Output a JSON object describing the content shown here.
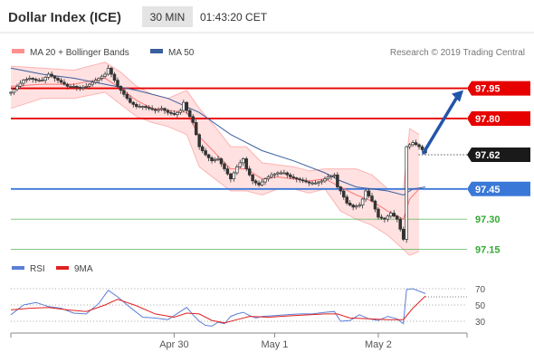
{
  "header": {
    "title": "Dollar Index (ICE)",
    "timeframe": "30 MIN",
    "time": "01:43:20 CET"
  },
  "legend": {
    "bollinger_label": "MA 20 + Bollinger Bands",
    "ma50_label": "MA 50",
    "credit": "Research © 2019 Trading Central"
  },
  "colors": {
    "resistance": "#e60000",
    "support": "#3a78d8",
    "current": "#222222",
    "target_line": "#2255aa",
    "bollinger": "#ff7777",
    "ma50": "#3a5fa0",
    "rsi": "#5b7fd6",
    "rsi_ma": "#e02020",
    "candle": "#333333"
  },
  "chart_data": [
    {
      "type": "candlestick",
      "title": "Dollar Index (ICE)",
      "interval": "30 MIN",
      "ylim": [
        97.13,
        98.02
      ],
      "x_ticks": [
        "Apr 30",
        "May 1",
        "May 2"
      ],
      "y_levels": [
        {
          "label": "97.95",
          "value": 97.95,
          "kind": "resistance",
          "style": "thick"
        },
        {
          "label": "97.80",
          "value": 97.8,
          "kind": "resistance",
          "style": "thick"
        },
        {
          "label": "97.62",
          "value": 97.62,
          "kind": "current",
          "style": "dotted"
        },
        {
          "label": "97.45",
          "value": 97.45,
          "kind": "pivot",
          "style": "thick"
        },
        {
          "label": "97.30",
          "value": 97.3,
          "kind": "support",
          "style": "thin"
        },
        {
          "label": "97.15",
          "value": 97.15,
          "kind": "support",
          "style": "thin"
        }
      ],
      "target_arrow": {
        "from": 97.63,
        "to": 97.95
      },
      "close_path": [
        [
          0,
          97.93
        ],
        [
          2,
          97.96
        ],
        [
          4,
          97.99
        ],
        [
          6,
          98.0
        ],
        [
          8,
          97.99
        ],
        [
          10,
          97.99
        ],
        [
          12,
          98.02
        ],
        [
          14,
          98.0
        ],
        [
          16,
          97.98
        ],
        [
          18,
          97.96
        ],
        [
          20,
          97.96
        ],
        [
          22,
          97.95
        ],
        [
          24,
          97.96
        ],
        [
          26,
          97.98
        ],
        [
          28,
          98.0
        ],
        [
          30,
          98.02
        ],
        [
          31,
          98.05
        ],
        [
          32,
          98.02
        ],
        [
          34,
          97.96
        ],
        [
          36,
          97.92
        ],
        [
          38,
          97.88
        ],
        [
          40,
          97.86
        ],
        [
          42,
          97.86
        ],
        [
          44,
          97.85
        ],
        [
          46,
          97.84
        ],
        [
          48,
          97.85
        ],
        [
          50,
          97.83
        ],
        [
          52,
          97.82
        ],
        [
          54,
          97.84
        ],
        [
          55,
          97.88
        ],
        [
          56,
          97.84
        ],
        [
          58,
          97.78
        ],
        [
          59,
          97.72
        ],
        [
          60,
          97.66
        ],
        [
          62,
          97.62
        ],
        [
          64,
          97.59
        ],
        [
          66,
          97.6
        ],
        [
          68,
          97.55
        ],
        [
          70,
          97.5
        ],
        [
          72,
          97.56
        ],
        [
          74,
          97.6
        ],
        [
          75,
          97.55
        ],
        [
          77,
          97.49
        ],
        [
          79,
          97.47
        ],
        [
          81,
          97.5
        ],
        [
          83,
          97.52
        ],
        [
          85,
          97.53
        ],
        [
          87,
          97.53
        ],
        [
          89,
          97.51
        ],
        [
          91,
          97.5
        ],
        [
          93,
          97.49
        ],
        [
          95,
          97.48
        ],
        [
          97,
          97.48
        ],
        [
          99,
          97.49
        ],
        [
          101,
          97.51
        ],
        [
          103,
          97.52
        ],
        [
          104,
          97.46
        ],
        [
          105,
          97.44
        ],
        [
          107,
          97.38
        ],
        [
          109,
          97.36
        ],
        [
          111,
          97.37
        ],
        [
          112,
          97.4
        ],
        [
          113,
          97.44
        ],
        [
          115,
          97.39
        ],
        [
          117,
          97.31
        ],
        [
          119,
          97.3
        ],
        [
          121,
          97.33
        ],
        [
          123,
          97.3
        ],
        [
          125,
          97.2
        ],
        [
          126,
          97.66
        ],
        [
          128,
          97.68
        ],
        [
          130,
          97.66
        ],
        [
          132,
          97.63
        ]
      ],
      "bollinger": {
        "upper": [
          [
            0,
            98.06
          ],
          [
            10,
            98.05
          ],
          [
            20,
            98.04
          ],
          [
            30,
            98.08
          ],
          [
            35,
            98.03
          ],
          [
            40,
            97.96
          ],
          [
            45,
            97.92
          ],
          [
            50,
            97.9
          ],
          [
            56,
            97.94
          ],
          [
            60,
            97.85
          ],
          [
            65,
            97.76
          ],
          [
            70,
            97.66
          ],
          [
            75,
            97.66
          ],
          [
            80,
            97.58
          ],
          [
            85,
            97.57
          ],
          [
            90,
            97.56
          ],
          [
            95,
            97.54
          ],
          [
            100,
            97.55
          ],
          [
            105,
            97.55
          ],
          [
            110,
            97.55
          ],
          [
            115,
            97.52
          ],
          [
            120,
            97.45
          ],
          [
            125,
            97.45
          ],
          [
            127,
            97.75
          ],
          [
            130,
            97.72
          ]
        ],
        "lower": [
          [
            0,
            97.85
          ],
          [
            10,
            97.9
          ],
          [
            20,
            97.9
          ],
          [
            30,
            97.93
          ],
          [
            35,
            97.87
          ],
          [
            40,
            97.81
          ],
          [
            45,
            97.78
          ],
          [
            50,
            97.76
          ],
          [
            56,
            97.72
          ],
          [
            60,
            97.56
          ],
          [
            65,
            97.5
          ],
          [
            70,
            97.44
          ],
          [
            75,
            97.44
          ],
          [
            80,
            97.42
          ],
          [
            85,
            97.45
          ],
          [
            90,
            97.45
          ],
          [
            95,
            97.43
          ],
          [
            100,
            97.45
          ],
          [
            105,
            97.34
          ],
          [
            110,
            97.3
          ],
          [
            115,
            97.27
          ],
          [
            120,
            97.22
          ],
          [
            125,
            97.15
          ],
          [
            127,
            97.12
          ],
          [
            130,
            97.14
          ]
        ]
      },
      "ma20": [
        [
          0,
          97.96
        ],
        [
          10,
          97.97
        ],
        [
          20,
          97.97
        ],
        [
          30,
          98.0
        ],
        [
          35,
          97.95
        ],
        [
          40,
          97.89
        ],
        [
          45,
          97.85
        ],
        [
          50,
          97.84
        ],
        [
          56,
          97.83
        ],
        [
          60,
          97.71
        ],
        [
          65,
          97.63
        ],
        [
          70,
          97.55
        ],
        [
          75,
          97.55
        ],
        [
          80,
          97.5
        ],
        [
          85,
          97.51
        ],
        [
          90,
          97.5
        ],
        [
          95,
          97.49
        ],
        [
          100,
          97.5
        ],
        [
          105,
          97.46
        ],
        [
          110,
          97.42
        ],
        [
          115,
          97.39
        ],
        [
          120,
          97.34
        ],
        [
          125,
          97.3
        ],
        [
          127,
          97.4
        ],
        [
          130,
          97.45
        ]
      ],
      "ma50": [
        [
          0,
          98.05
        ],
        [
          10,
          98.02
        ],
        [
          20,
          98.0
        ],
        [
          30,
          97.97
        ],
        [
          40,
          97.94
        ],
        [
          50,
          97.9
        ],
        [
          60,
          97.83
        ],
        [
          70,
          97.72
        ],
        [
          80,
          97.64
        ],
        [
          90,
          97.59
        ],
        [
          100,
          97.53
        ],
        [
          105,
          97.49
        ],
        [
          110,
          97.46
        ],
        [
          115,
          97.45
        ],
        [
          120,
          97.44
        ],
        [
          125,
          97.42
        ],
        [
          128,
          97.45
        ],
        [
          132,
          97.46
        ]
      ]
    },
    {
      "type": "line",
      "title": "",
      "ylim": [
        20,
        80
      ],
      "y_ticks": [
        70,
        50,
        30
      ],
      "series": [
        {
          "name": "RSI",
          "values": [
            [
              0,
              38
            ],
            [
              4,
              50
            ],
            [
              8,
              53
            ],
            [
              12,
              48
            ],
            [
              16,
              46
            ],
            [
              20,
              40
            ],
            [
              24,
              39
            ],
            [
              28,
              52
            ],
            [
              31,
              68
            ],
            [
              34,
              60
            ],
            [
              38,
              47
            ],
            [
              42,
              35
            ],
            [
              46,
              34
            ],
            [
              50,
              32
            ],
            [
              54,
              42
            ],
            [
              56,
              47
            ],
            [
              58,
              38
            ],
            [
              60,
              30
            ],
            [
              62,
              25
            ],
            [
              64,
              24
            ],
            [
              66,
              29
            ],
            [
              68,
              27
            ],
            [
              70,
              36
            ],
            [
              72,
              39
            ],
            [
              74,
              41
            ],
            [
              76,
              37
            ],
            [
              78,
              34
            ],
            [
              80,
              36
            ],
            [
              84,
              37
            ],
            [
              88,
              38
            ],
            [
              92,
              39
            ],
            [
              96,
              39
            ],
            [
              100,
              41
            ],
            [
              103,
              42
            ],
            [
              105,
              30
            ],
            [
              108,
              31
            ],
            [
              111,
              38
            ],
            [
              114,
              33
            ],
            [
              117,
              31
            ],
            [
              120,
              36
            ],
            [
              123,
              33
            ],
            [
              125,
              27
            ],
            [
              126,
              69
            ],
            [
              128,
              70
            ],
            [
              132,
              64
            ]
          ]
        },
        {
          "name": "9MA",
          "values": [
            [
              0,
              44
            ],
            [
              6,
              46
            ],
            [
              12,
              47
            ],
            [
              18,
              44
            ],
            [
              24,
              42
            ],
            [
              30,
              50
            ],
            [
              34,
              57
            ],
            [
              40,
              49
            ],
            [
              46,
              39
            ],
            [
              52,
              35
            ],
            [
              56,
              40
            ],
            [
              60,
              39
            ],
            [
              64,
              31
            ],
            [
              68,
              28
            ],
            [
              72,
              32
            ],
            [
              76,
              36
            ],
            [
              82,
              35
            ],
            [
              90,
              37
            ],
            [
              100,
              39
            ],
            [
              104,
              39
            ],
            [
              108,
              34
            ],
            [
              114,
              33
            ],
            [
              120,
              32
            ],
            [
              125,
              32
            ],
            [
              128,
              46
            ],
            [
              132,
              61
            ]
          ]
        }
      ]
    }
  ]
}
